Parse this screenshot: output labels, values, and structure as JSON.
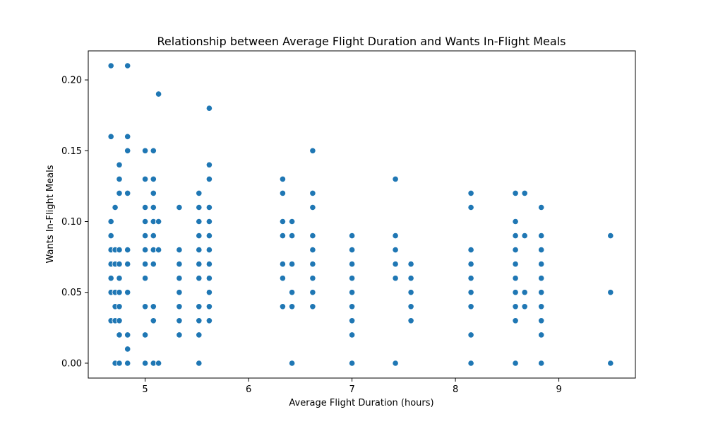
{
  "chart_data": {
    "type": "scatter",
    "title": "Relationship between Average Flight Duration and Wants In-Flight Meals",
    "xlabel": "Average Flight Duration (hours)",
    "ylabel": "Wants In-Flight Meals",
    "xlim": [
      4.45,
      9.74
    ],
    "ylim": [
      -0.0105,
      0.2205
    ],
    "xticks": [
      5,
      6,
      7,
      8,
      9
    ],
    "xtick_labels": [
      "5",
      "6",
      "7",
      "8",
      "9"
    ],
    "yticks": [
      0.0,
      0.05,
      0.1,
      0.15,
      0.2
    ],
    "ytick_labels": [
      "0.00",
      "0.05",
      "0.10",
      "0.15",
      "0.20"
    ],
    "grid": false,
    "color": "#1f77b4",
    "points": [
      [
        4.67,
        0.21
      ],
      [
        4.67,
        0.16
      ],
      [
        4.67,
        0.1
      ],
      [
        4.67,
        0.09
      ],
      [
        4.67,
        0.08
      ],
      [
        4.67,
        0.07
      ],
      [
        4.67,
        0.06
      ],
      [
        4.67,
        0.05
      ],
      [
        4.67,
        0.03
      ],
      [
        4.71,
        0.11
      ],
      [
        4.71,
        0.08
      ],
      [
        4.71,
        0.07
      ],
      [
        4.71,
        0.05
      ],
      [
        4.71,
        0.04
      ],
      [
        4.71,
        0.03
      ],
      [
        4.71,
        0.0
      ],
      [
        4.75,
        0.14
      ],
      [
        4.75,
        0.13
      ],
      [
        4.75,
        0.12
      ],
      [
        4.75,
        0.08
      ],
      [
        4.75,
        0.07
      ],
      [
        4.75,
        0.06
      ],
      [
        4.75,
        0.05
      ],
      [
        4.75,
        0.04
      ],
      [
        4.75,
        0.03
      ],
      [
        4.75,
        0.02
      ],
      [
        4.75,
        0.0
      ],
      [
        4.83,
        0.21
      ],
      [
        4.83,
        0.16
      ],
      [
        4.83,
        0.15
      ],
      [
        4.83,
        0.12
      ],
      [
        4.83,
        0.08
      ],
      [
        4.83,
        0.07
      ],
      [
        4.83,
        0.05
      ],
      [
        4.83,
        0.02
      ],
      [
        4.83,
        0.01
      ],
      [
        4.83,
        0.0
      ],
      [
        5.0,
        0.15
      ],
      [
        5.0,
        0.13
      ],
      [
        5.0,
        0.11
      ],
      [
        5.0,
        0.1
      ],
      [
        5.0,
        0.09
      ],
      [
        5.0,
        0.08
      ],
      [
        5.0,
        0.07
      ],
      [
        5.0,
        0.06
      ],
      [
        5.0,
        0.04
      ],
      [
        5.0,
        0.02
      ],
      [
        5.0,
        0.0
      ],
      [
        5.08,
        0.15
      ],
      [
        5.08,
        0.13
      ],
      [
        5.08,
        0.12
      ],
      [
        5.08,
        0.11
      ],
      [
        5.08,
        0.1
      ],
      [
        5.08,
        0.09
      ],
      [
        5.08,
        0.08
      ],
      [
        5.08,
        0.07
      ],
      [
        5.08,
        0.04
      ],
      [
        5.08,
        0.03
      ],
      [
        5.08,
        0.0
      ],
      [
        5.13,
        0.19
      ],
      [
        5.13,
        0.1
      ],
      [
        5.13,
        0.08
      ],
      [
        5.13,
        0.0
      ],
      [
        5.33,
        0.11
      ],
      [
        5.33,
        0.08
      ],
      [
        5.33,
        0.07
      ],
      [
        5.33,
        0.06
      ],
      [
        5.33,
        0.05
      ],
      [
        5.33,
        0.04
      ],
      [
        5.33,
        0.03
      ],
      [
        5.33,
        0.02
      ],
      [
        5.52,
        0.12
      ],
      [
        5.52,
        0.11
      ],
      [
        5.52,
        0.1
      ],
      [
        5.52,
        0.09
      ],
      [
        5.52,
        0.08
      ],
      [
        5.52,
        0.07
      ],
      [
        5.52,
        0.06
      ],
      [
        5.52,
        0.04
      ],
      [
        5.52,
        0.03
      ],
      [
        5.52,
        0.02
      ],
      [
        5.52,
        0.0
      ],
      [
        5.62,
        0.18
      ],
      [
        5.62,
        0.14
      ],
      [
        5.62,
        0.13
      ],
      [
        5.62,
        0.11
      ],
      [
        5.62,
        0.1
      ],
      [
        5.62,
        0.09
      ],
      [
        5.62,
        0.08
      ],
      [
        5.62,
        0.07
      ],
      [
        5.62,
        0.06
      ],
      [
        5.62,
        0.05
      ],
      [
        5.62,
        0.04
      ],
      [
        5.62,
        0.03
      ],
      [
        6.33,
        0.13
      ],
      [
        6.33,
        0.12
      ],
      [
        6.33,
        0.1
      ],
      [
        6.33,
        0.09
      ],
      [
        6.33,
        0.07
      ],
      [
        6.33,
        0.06
      ],
      [
        6.33,
        0.04
      ],
      [
        6.42,
        0.1
      ],
      [
        6.42,
        0.09
      ],
      [
        6.42,
        0.07
      ],
      [
        6.42,
        0.05
      ],
      [
        6.42,
        0.04
      ],
      [
        6.42,
        0.0
      ],
      [
        6.62,
        0.15
      ],
      [
        6.62,
        0.12
      ],
      [
        6.62,
        0.11
      ],
      [
        6.62,
        0.09
      ],
      [
        6.62,
        0.08
      ],
      [
        6.62,
        0.07
      ],
      [
        6.62,
        0.06
      ],
      [
        6.62,
        0.05
      ],
      [
        6.62,
        0.04
      ],
      [
        7.0,
        0.09
      ],
      [
        7.0,
        0.08
      ],
      [
        7.0,
        0.07
      ],
      [
        7.0,
        0.06
      ],
      [
        7.0,
        0.05
      ],
      [
        7.0,
        0.04
      ],
      [
        7.0,
        0.03
      ],
      [
        7.0,
        0.02
      ],
      [
        7.0,
        0.0
      ],
      [
        7.42,
        0.13
      ],
      [
        7.42,
        0.09
      ],
      [
        7.42,
        0.08
      ],
      [
        7.42,
        0.07
      ],
      [
        7.42,
        0.06
      ],
      [
        7.42,
        0.0
      ],
      [
        7.57,
        0.07
      ],
      [
        7.57,
        0.06
      ],
      [
        7.57,
        0.05
      ],
      [
        7.57,
        0.04
      ],
      [
        7.57,
        0.03
      ],
      [
        8.15,
        0.12
      ],
      [
        8.15,
        0.11
      ],
      [
        8.15,
        0.08
      ],
      [
        8.15,
        0.07
      ],
      [
        8.15,
        0.06
      ],
      [
        8.15,
        0.05
      ],
      [
        8.15,
        0.04
      ],
      [
        8.15,
        0.02
      ],
      [
        8.15,
        0.0
      ],
      [
        8.58,
        0.12
      ],
      [
        8.58,
        0.1
      ],
      [
        8.58,
        0.09
      ],
      [
        8.58,
        0.08
      ],
      [
        8.58,
        0.07
      ],
      [
        8.58,
        0.06
      ],
      [
        8.58,
        0.05
      ],
      [
        8.58,
        0.04
      ],
      [
        8.58,
        0.03
      ],
      [
        8.58,
        0.0
      ],
      [
        8.67,
        0.12
      ],
      [
        8.67,
        0.09
      ],
      [
        8.67,
        0.05
      ],
      [
        8.67,
        0.04
      ],
      [
        8.83,
        0.11
      ],
      [
        8.83,
        0.09
      ],
      [
        8.83,
        0.08
      ],
      [
        8.83,
        0.07
      ],
      [
        8.83,
        0.06
      ],
      [
        8.83,
        0.05
      ],
      [
        8.83,
        0.04
      ],
      [
        8.83,
        0.03
      ],
      [
        8.83,
        0.02
      ],
      [
        8.83,
        0.0
      ],
      [
        9.5,
        0.09
      ],
      [
        9.5,
        0.05
      ],
      [
        9.5,
        0.0
      ]
    ]
  }
}
